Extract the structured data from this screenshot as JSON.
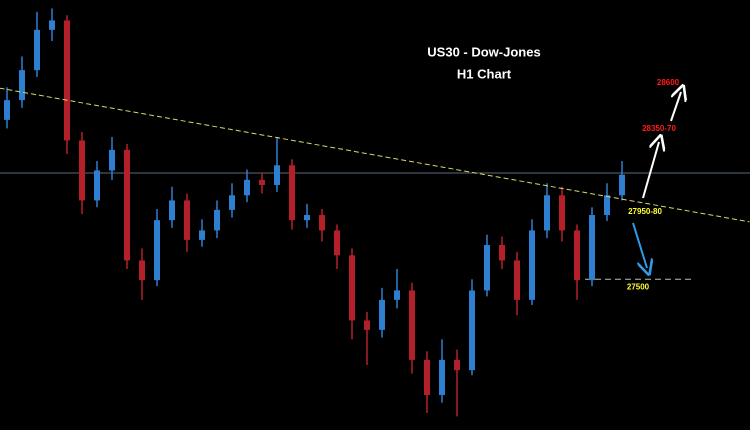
{
  "chart_data": {
    "type": "candlestick",
    "title": "US30 - Dow-Jones",
    "subtitle": "H1 Chart",
    "open": [
      28430,
      28545,
      28720,
      28955,
      29010,
      28310,
      27960,
      28135,
      28255,
      27610,
      27495,
      27845,
      27960,
      27730,
      27785,
      27905,
      27990,
      28080,
      28050,
      28165,
      27845,
      27875,
      27785,
      27640,
      27260,
      27205,
      27380,
      27435,
      27030,
      26825,
      27030,
      26970,
      27435,
      27700,
      27610,
      27380,
      27785,
      27990,
      27785,
      27495,
      27875,
      27990
    ],
    "high": [
      28620,
      28800,
      29060,
      29080,
      29040,
      28360,
      28190,
      28330,
      28290,
      27680,
      27910,
      28040,
      28000,
      27850,
      27960,
      28060,
      28140,
      28120,
      28330,
      28200,
      27940,
      27910,
      27820,
      27680,
      27310,
      27450,
      27560,
      27480,
      27080,
      27150,
      27090,
      27500,
      27760,
      27750,
      27660,
      27850,
      28060,
      28040,
      27820,
      27920,
      28060,
      28190
    ],
    "low": [
      28380,
      28500,
      28680,
      28890,
      28230,
      27880,
      27920,
      28080,
      27560,
      27380,
      27460,
      27800,
      27660,
      27690,
      27740,
      27860,
      27950,
      28000,
      28010,
      27790,
      27800,
      27720,
      27560,
      27150,
      27000,
      27160,
      27330,
      26950,
      26720,
      26780,
      26700,
      26940,
      27400,
      27560,
      27290,
      27350,
      27740,
      27720,
      27380,
      27460,
      27840,
      27960
    ],
    "close": [
      28545,
      28720,
      28955,
      29010,
      28310,
      27960,
      28135,
      28255,
      27610,
      27495,
      27845,
      27960,
      27730,
      27785,
      27905,
      27990,
      28080,
      28050,
      28165,
      27845,
      27875,
      27785,
      27640,
      27260,
      27205,
      27380,
      27435,
      27030,
      26825,
      27030,
      26970,
      27435,
      27700,
      27610,
      27380,
      27785,
      27990,
      27785,
      27495,
      27875,
      27990,
      28110
    ],
    "up_color": "#2f7fd0",
    "down_color": "#b3202a",
    "ylim": [
      26650,
      29100
    ],
    "trendline": {
      "x": [
        -0.5,
        49.5
      ],
      "values": [
        28615,
        27835
      ],
      "color": "#d8d86a"
    },
    "price_line": 28120,
    "support_level": 27500,
    "annotations": {
      "target_high": "28600",
      "target_mid": "28350-70",
      "entry": "27950-80"
    }
  }
}
